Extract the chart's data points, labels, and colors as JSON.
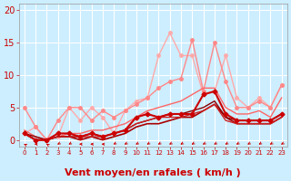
{
  "background_color": "#cceeff",
  "grid_color": "#ffffff",
  "xlabel": "Vent moyen/en rafales ( km/h )",
  "xlabel_color": "#cc0000",
  "xlabel_fontsize": 8,
  "tick_color": "#cc0000",
  "tick_fontsize": 7,
  "ylim": [
    -1,
    21
  ],
  "xlim": [
    -0.5,
    23.5
  ],
  "yticks": [
    0,
    5,
    10,
    15,
    20
  ],
  "xticks": [
    0,
    1,
    2,
    3,
    4,
    5,
    6,
    7,
    8,
    9,
    10,
    11,
    12,
    13,
    14,
    15,
    16,
    17,
    18,
    19,
    20,
    21,
    22,
    23
  ],
  "lines": [
    {
      "x": [
        0,
        1,
        2,
        3,
        4,
        5,
        6,
        7,
        8,
        9,
        10,
        11,
        12,
        13,
        14,
        15,
        16,
        17,
        18,
        19,
        20,
        21,
        22,
        23
      ],
      "y": [
        1.0,
        2.0,
        0.0,
        0.5,
        5.0,
        3.0,
        5.0,
        3.5,
        1.0,
        4.5,
        6.0,
        6.5,
        13.0,
        16.5,
        13.0,
        13.0,
        7.0,
        7.5,
        13.0,
        6.5,
        5.0,
        6.5,
        5.0,
        8.5
      ],
      "color": "#ffaaaa",
      "linewidth": 1.0,
      "marker": "o",
      "markersize": 2.5,
      "zorder": 2
    },
    {
      "x": [
        0,
        1,
        2,
        3,
        4,
        5,
        6,
        7,
        8,
        9,
        10,
        11,
        12,
        13,
        14,
        15,
        16,
        17,
        18,
        19,
        20,
        21,
        22,
        23
      ],
      "y": [
        5.0,
        2.0,
        0.0,
        3.0,
        5.0,
        5.0,
        3.0,
        4.5,
        3.5,
        4.5,
        5.5,
        6.5,
        8.0,
        9.0,
        9.5,
        15.5,
        7.5,
        15.0,
        9.0,
        5.0,
        5.0,
        6.0,
        5.0,
        8.5
      ],
      "color": "#ff8888",
      "linewidth": 1.0,
      "marker": "o",
      "markersize": 2.5,
      "zorder": 3
    },
    {
      "x": [
        0,
        1,
        2,
        3,
        4,
        5,
        6,
        7,
        8,
        9,
        10,
        11,
        12,
        13,
        14,
        15,
        16,
        17,
        18,
        19,
        20,
        21,
        22,
        23
      ],
      "y": [
        1.0,
        0.0,
        0.0,
        1.0,
        1.0,
        0.5,
        1.0,
        0.5,
        1.0,
        1.5,
        3.5,
        4.0,
        3.5,
        4.0,
        4.0,
        4.0,
        7.0,
        7.5,
        4.0,
        3.0,
        3.0,
        3.0,
        3.0,
        4.0
      ],
      "color": "#cc0000",
      "linewidth": 1.5,
      "marker": "D",
      "markersize": 2.5,
      "zorder": 5
    },
    {
      "x": [
        0,
        1,
        2,
        3,
        4,
        5,
        6,
        7,
        8,
        9,
        10,
        11,
        12,
        13,
        14,
        15,
        16,
        17,
        18,
        19,
        20,
        21,
        22,
        23
      ],
      "y": [
        1.0,
        0.0,
        0.0,
        0.5,
        0.5,
        0.0,
        0.5,
        0.0,
        0.5,
        1.0,
        2.0,
        2.5,
        2.5,
        3.0,
        3.5,
        3.5,
        4.5,
        5.5,
        3.5,
        2.5,
        2.5,
        2.5,
        2.5,
        3.5
      ],
      "color": "#aa0000",
      "linewidth": 1.2,
      "marker": null,
      "markersize": 0,
      "zorder": 4
    },
    {
      "x": [
        0,
        1,
        2,
        3,
        4,
        5,
        6,
        7,
        8,
        9,
        10,
        11,
        12,
        13,
        14,
        15,
        16,
        17,
        18,
        19,
        20,
        21,
        22,
        23
      ],
      "y": [
        1.5,
        0.5,
        0.0,
        0.5,
        1.0,
        1.0,
        1.5,
        1.5,
        2.0,
        2.5,
        3.5,
        4.5,
        5.0,
        5.5,
        6.0,
        7.0,
        8.0,
        8.0,
        5.0,
        4.0,
        4.0,
        4.5,
        3.5,
        6.5
      ],
      "color": "#ff6666",
      "linewidth": 1.0,
      "marker": null,
      "markersize": 0,
      "zorder": 3
    },
    {
      "x": [
        0,
        1,
        2,
        3,
        4,
        5,
        6,
        7,
        8,
        9,
        10,
        11,
        12,
        13,
        14,
        15,
        16,
        17,
        18,
        19,
        20,
        21,
        22,
        23
      ],
      "y": [
        1.0,
        0.5,
        0.0,
        0.5,
        0.5,
        0.5,
        1.0,
        0.5,
        1.0,
        1.5,
        2.5,
        3.0,
        3.5,
        4.0,
        4.0,
        4.5,
        5.0,
        6.0,
        3.5,
        3.0,
        3.0,
        3.0,
        3.0,
        4.0
      ],
      "color": "#880000",
      "linewidth": 1.0,
      "marker": null,
      "markersize": 0,
      "zorder": 4
    },
    {
      "x": [
        0,
        1,
        2,
        3,
        4,
        5,
        6,
        7,
        8,
        9,
        10,
        11,
        12,
        13,
        14,
        15,
        16,
        17,
        18,
        19,
        20,
        21,
        22,
        23
      ],
      "y": [
        1.0,
        0.0,
        0.0,
        0.5,
        0.5,
        0.5,
        0.5,
        0.5,
        1.0,
        1.5,
        2.5,
        3.0,
        3.5,
        3.5,
        3.5,
        4.0,
        4.5,
        5.5,
        3.0,
        2.5,
        2.5,
        2.5,
        2.5,
        3.5
      ],
      "color": "#cc2222",
      "linewidth": 1.0,
      "marker": null,
      "markersize": 0,
      "zorder": 4
    }
  ],
  "wind_arrows": {
    "x": [
      0,
      1,
      2,
      3,
      4,
      5,
      6,
      7,
      8,
      9,
      10,
      11,
      12,
      13,
      14,
      15,
      16,
      17,
      18,
      19,
      20,
      21,
      22,
      23
    ],
    "color": "#cc0000",
    "angles": [
      225,
      270,
      225,
      315,
      315,
      270,
      270,
      270,
      315,
      315,
      315,
      315,
      315,
      315,
      315,
      315,
      315,
      315,
      315,
      315,
      315,
      315,
      315,
      315
    ]
  }
}
